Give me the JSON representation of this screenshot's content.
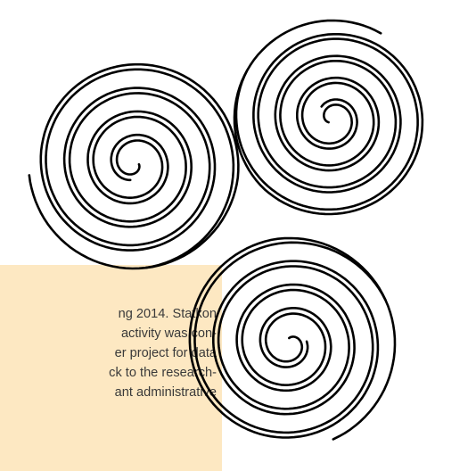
{
  "page": {
    "background_color": "#ffffff",
    "box_color": "#fde8c2",
    "text_color": "#3a3a3a",
    "line_color": "#000000"
  },
  "text_box": {
    "lines": [
      "ng 2014. Statkon",
      "activity was con-",
      "er project for data",
      "ck to the research-",
      "ant administrative"
    ]
  },
  "decoration": {
    "icon": "triskele-spiral-icon"
  }
}
